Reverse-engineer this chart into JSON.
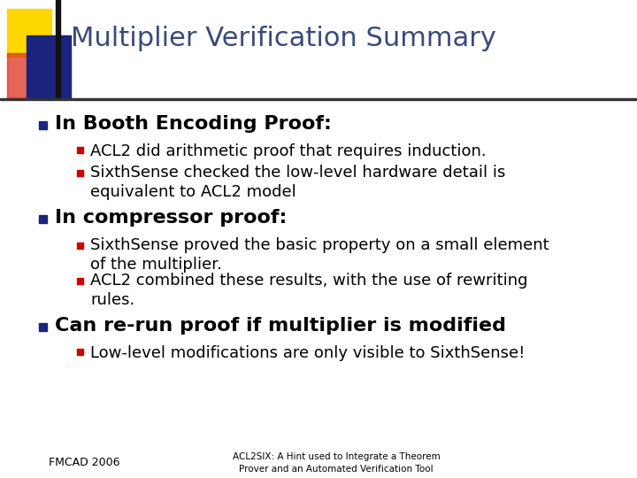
{
  "title": "Multiplier Verification Summary",
  "title_color": "#3a4a7a",
  "background_color": "#ffffff",
  "bullet_color_l1": "#1a237e",
  "bullet_color_l2": "#cc0000",
  "title_font_size": 22,
  "l1_font_size": 16,
  "l2_font_size": 13,
  "l3_font_size": 16,
  "footer_left": "FMCAD 2006",
  "footer_right": "ACL2SIX: A Hint used to Integrate a Theorem\nProver and an Automated Verification Tool",
  "header_bar_color": "#1a237e",
  "header_yellow_color": "#ffd700",
  "header_red_color": "#dd3322",
  "header_blue_color": "#1a237e",
  "divider_color": "#333333",
  "content": [
    {
      "text": "In Booth Encoding Proof:",
      "bold": true,
      "level": 1,
      "children": [
        {
          "text": "ACL2 did arithmetic proof that requires induction.",
          "level": 2
        },
        {
          "text": "SixthSense checked the low-level hardware detail is\nequivalent to ACL2 model",
          "level": 2
        }
      ]
    },
    {
      "text": "In compressor proof:",
      "bold": true,
      "level": 1,
      "children": [
        {
          "text": "SixthSense proved the basic property on a small element\nof the multiplier.",
          "level": 2
        },
        {
          "text": "ACL2 combined these results, with the use of rewriting\nrules.",
          "level": 2
        }
      ]
    },
    {
      "text": "Can re-run proof if multiplier is modified",
      "bold": true,
      "level": 1,
      "children": [
        {
          "text": "Low-level modifications are only visible to SixthSense!",
          "level": 2
        }
      ]
    }
  ]
}
